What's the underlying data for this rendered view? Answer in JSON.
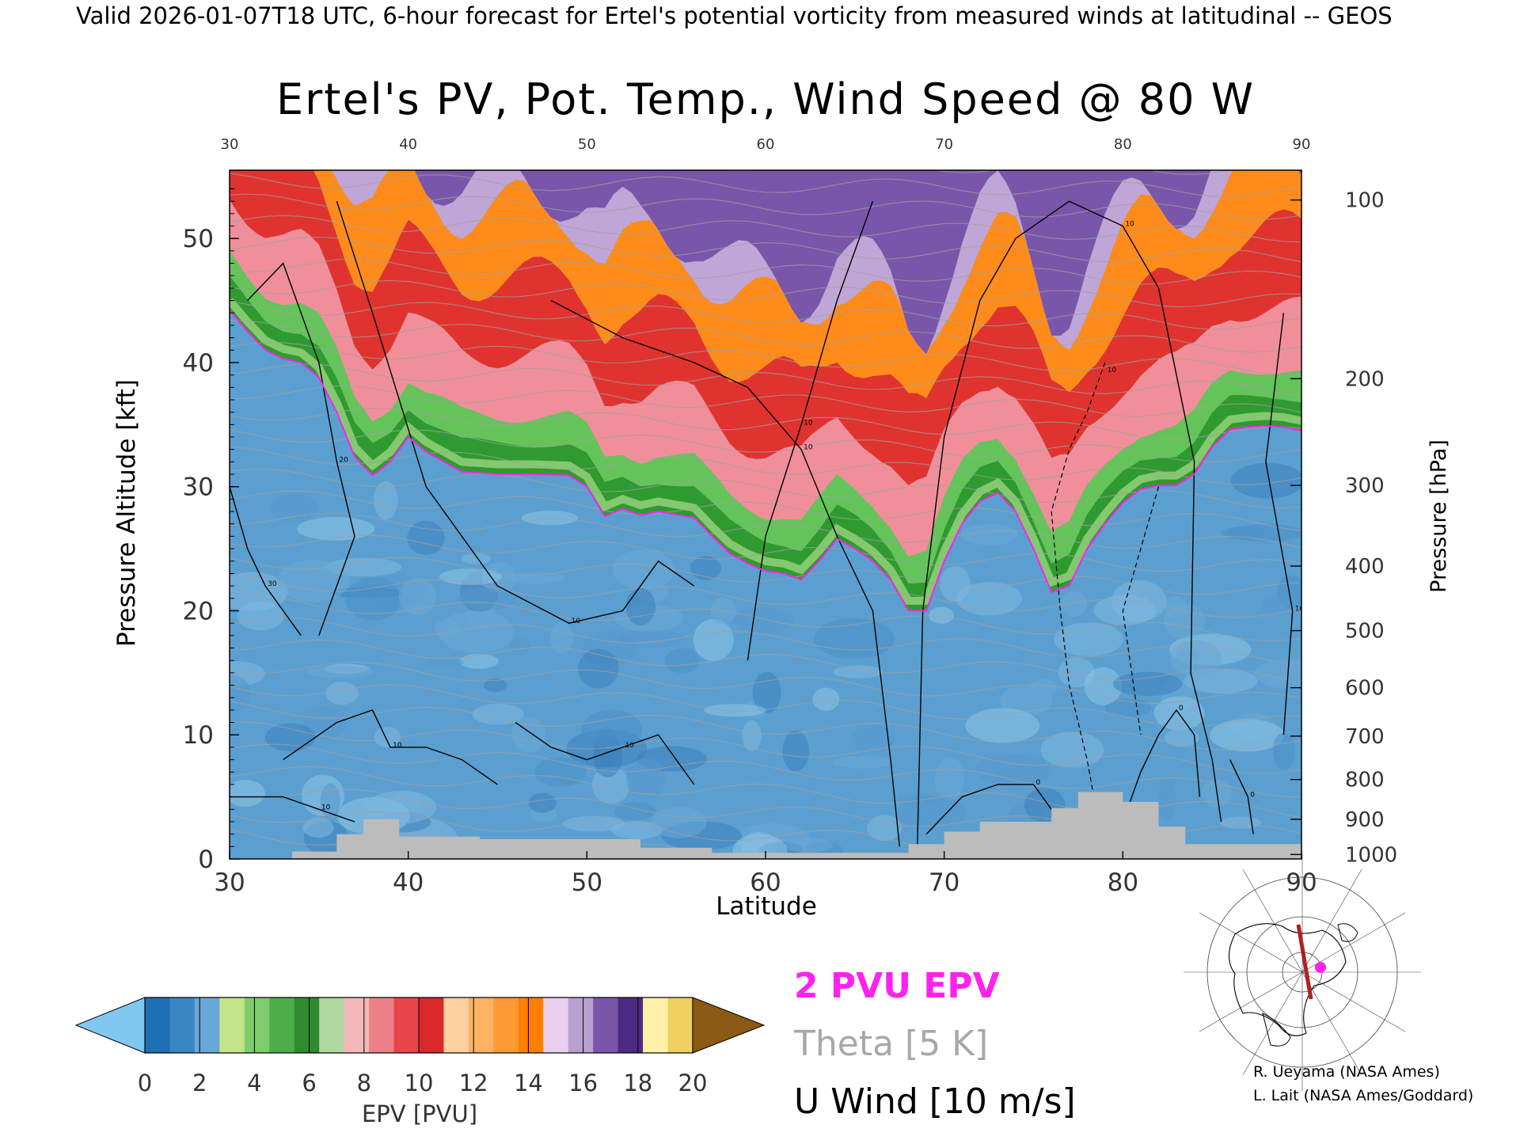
{
  "header": {
    "caption": "Valid 2026-01-07T18 UTC, 6-hour forecast for Ertel's potential vorticity from measured winds at latitudinal -- GEOS"
  },
  "chart_data": {
    "type": "heatmap",
    "title": "Ertel's PV, Pot. Temp., Wind Speed @ 80 W",
    "xlabel": "Latitude",
    "ylabel": "Pressure Altitude [kft]",
    "ylabel_right": "Pressure [hPa]",
    "xlim": [
      30,
      90
    ],
    "ylim": [
      0,
      55.5
    ],
    "x_ticks": [
      30,
      40,
      50,
      60,
      70,
      80,
      90
    ],
    "x_tick_labels": [
      "30",
      "40",
      "50",
      "60",
      "70",
      "80",
      "90"
    ],
    "top_tick_labels": [
      "30",
      "40",
      "50",
      "60",
      "70",
      "80",
      "90"
    ],
    "y_ticks": [
      0,
      10,
      20,
      30,
      40,
      50
    ],
    "y_tick_labels": [
      "0",
      "10",
      "20",
      "30",
      "40",
      "50"
    ],
    "right_ticks": [
      {
        "hPa": "100",
        "kft": 53.1
      },
      {
        "hPa": "200",
        "kft": 38.7
      },
      {
        "hPa": "300",
        "kft": 30.1
      },
      {
        "hPa": "400",
        "kft": 23.6
      },
      {
        "hPa": "500",
        "kft": 18.4
      },
      {
        "hPa": "600",
        "kft": 13.8
      },
      {
        "hPa": "700",
        "kft": 9.9
      },
      {
        "hPa": "800",
        "kft": 6.4
      },
      {
        "hPa": "900",
        "kft": 3.2
      },
      {
        "hPa": "1000",
        "kft": 0.36
      }
    ],
    "tropopause_2pvu": [
      [
        30,
        44.2
      ],
      [
        31,
        42.5
      ],
      [
        32,
        41
      ],
      [
        33,
        40.3
      ],
      [
        34,
        40
      ],
      [
        35,
        38.8
      ],
      [
        36,
        36
      ],
      [
        37,
        32.4
      ],
      [
        38,
        30.9
      ],
      [
        39,
        32
      ],
      [
        40,
        34
      ],
      [
        41,
        32.8
      ],
      [
        42,
        32
      ],
      [
        43,
        31.2
      ],
      [
        45,
        31
      ],
      [
        47,
        31
      ],
      [
        49,
        30.9
      ],
      [
        50,
        30
      ],
      [
        51,
        27.6
      ],
      [
        52,
        28.2
      ],
      [
        53,
        27.7
      ],
      [
        54,
        28
      ],
      [
        56,
        27.5
      ],
      [
        57,
        26
      ],
      [
        58,
        24.6
      ],
      [
        59,
        23.8
      ],
      [
        60,
        23.2
      ],
      [
        61,
        23
      ],
      [
        62,
        22.5
      ],
      [
        63,
        24
      ],
      [
        64,
        25.8
      ],
      [
        65,
        25
      ],
      [
        66,
        24
      ],
      [
        67,
        22.5
      ],
      [
        68,
        20
      ],
      [
        69,
        20
      ],
      [
        70,
        24
      ],
      [
        71,
        27
      ],
      [
        72,
        28.8
      ],
      [
        73,
        29.5
      ],
      [
        74,
        28
      ],
      [
        75,
        25
      ],
      [
        76,
        21.5
      ],
      [
        77,
        22
      ],
      [
        78,
        25
      ],
      [
        79,
        27
      ],
      [
        80,
        28.7
      ],
      [
        81,
        29.8
      ],
      [
        82,
        30.1
      ],
      [
        83,
        30.1
      ],
      [
        84,
        31
      ],
      [
        85,
        33.2
      ],
      [
        86,
        34.6
      ],
      [
        87,
        34.8
      ],
      [
        88,
        34.9
      ],
      [
        89,
        34.8
      ],
      [
        90,
        34.5
      ]
    ],
    "epv_layers_kft_thickness": [
      {
        "color": "#2f9a2f",
        "thickness": 2.5
      },
      {
        "color": "#64c45a",
        "thickness": 2.2
      },
      {
        "color": "#f08f9a",
        "thickness": 5.0
      },
      {
        "color": "#e0332f",
        "thickness": 6.0
      },
      {
        "color": "#ff8c1a",
        "thickness": 5.5
      },
      {
        "color": "#c0a6d6",
        "thickness": 2.0
      },
      {
        "color": "#7a56aa",
        "thickness": 3.0
      }
    ],
    "u_wind_contours": [
      {
        "label": "30",
        "points": [
          [
            30,
            30
          ],
          [
            31,
            25
          ],
          [
            32,
            22
          ],
          [
            33,
            20
          ],
          [
            34,
            18
          ]
        ]
      },
      {
        "label": "20",
        "points": [
          [
            31,
            45
          ],
          [
            33,
            48
          ],
          [
            35,
            40
          ],
          [
            36,
            32
          ],
          [
            37,
            26
          ],
          [
            36,
            22
          ],
          [
            35,
            18
          ]
        ]
      },
      {
        "label": "10",
        "points": [
          [
            36,
            53
          ],
          [
            38,
            44
          ],
          [
            41,
            30
          ],
          [
            45,
            22
          ],
          [
            49,
            19
          ],
          [
            52,
            20
          ],
          [
            54,
            24
          ],
          [
            56,
            22
          ]
        ]
      },
      {
        "label": "10",
        "points": [
          [
            48,
            45
          ],
          [
            52,
            42
          ],
          [
            56,
            40
          ],
          [
            59,
            38
          ],
          [
            62,
            33
          ],
          [
            64,
            26
          ],
          [
            66,
            20
          ],
          [
            67,
            8
          ],
          [
            67.5,
            1
          ]
        ]
      },
      {
        "label": "10",
        "points": [
          [
            68.5,
            1
          ],
          [
            68.8,
            20
          ],
          [
            70,
            34
          ],
          [
            72,
            45
          ],
          [
            74,
            50
          ],
          [
            77,
            53
          ],
          [
            80,
            51
          ],
          [
            82,
            46
          ],
          [
            84,
            32
          ],
          [
            83.8,
            15
          ],
          [
            85,
            8
          ],
          [
            85.5,
            3
          ]
        ]
      },
      {
        "label": "10",
        "points": [
          [
            66,
            53
          ],
          [
            64,
            45
          ],
          [
            62,
            35
          ],
          [
            60,
            26
          ],
          [
            59,
            16
          ]
        ]
      },
      {
        "label": "0",
        "points": [
          [
            86,
            8
          ],
          [
            87,
            5
          ],
          [
            87.3,
            2
          ]
        ]
      },
      {
        "label": "10",
        "points": [
          [
            89,
            44
          ],
          [
            88,
            32
          ],
          [
            89.5,
            20
          ],
          [
            89,
            10
          ]
        ]
      },
      {
        "label": "10",
        "points": [
          [
            33,
            8
          ],
          [
            36,
            11
          ],
          [
            38,
            12
          ],
          [
            39,
            9
          ],
          [
            41,
            9
          ],
          [
            43,
            8
          ],
          [
            45,
            6
          ]
        ]
      },
      {
        "label": "10",
        "points": [
          [
            30,
            5
          ],
          [
            33,
            5
          ],
          [
            35,
            4
          ],
          [
            37,
            3
          ]
        ]
      },
      {
        "label": "10",
        "points": [
          [
            46,
            11
          ],
          [
            48,
            9
          ],
          [
            50,
            8
          ],
          [
            52,
            9
          ],
          [
            54,
            10
          ],
          [
            55,
            8
          ],
          [
            56,
            6
          ]
        ]
      },
      {
        "label": "0",
        "points": [
          [
            69,
            2
          ],
          [
            71,
            5
          ],
          [
            73,
            6
          ],
          [
            75,
            6
          ],
          [
            76,
            4
          ],
          [
            76.5,
            2
          ]
        ]
      },
      {
        "label": "0",
        "points": [
          [
            80,
            3
          ],
          [
            81,
            7
          ],
          [
            82,
            10
          ],
          [
            83,
            12
          ],
          [
            84,
            10
          ],
          [
            84.3,
            5
          ]
        ]
      }
    ],
    "u_wind_dashed": [
      {
        "label": "10",
        "points": [
          [
            79,
            40
          ],
          [
            78,
            36
          ],
          [
            77,
            33
          ],
          [
            76,
            28
          ],
          [
            76.5,
            20
          ],
          [
            77,
            14
          ],
          [
            78,
            8
          ],
          [
            78.5,
            4
          ]
        ]
      },
      {
        "label": "",
        "points": [
          [
            82,
            30
          ],
          [
            81,
            25
          ],
          [
            80,
            20
          ],
          [
            80.5,
            15
          ],
          [
            81,
            10
          ]
        ]
      }
    ],
    "colorbar": {
      "label": "EPV [PVU]",
      "ticks": [
        "0",
        "2",
        "4",
        "6",
        "8",
        "10",
        "12",
        "14",
        "16",
        "18",
        "20"
      ],
      "colors": [
        "#1f6fb4",
        "#3a86c4",
        "#68a8d6",
        "#c4e48a",
        "#7fcc6c",
        "#4caf4c",
        "#2e8b2e",
        "#b0d8a0",
        "#f5b8b8",
        "#ee8088",
        "#e8454a",
        "#d82828",
        "#ffd0a0",
        "#ffb266",
        "#ff9933",
        "#ff7f00",
        "#e8d0ee",
        "#b8a0d0",
        "#7a56aa",
        "#4b2c82",
        "#fff2a8",
        "#f0d060"
      ],
      "under_color": "#80c8f0",
      "over_color": "#8b5a14"
    }
  },
  "legend": {
    "epv_label": "2 PVU EPV",
    "theta_label": "Theta [5 K]",
    "wind_label": "U Wind [10 m/s]",
    "epv_color": "#ff22ee",
    "theta_color": "#a8a8a8",
    "wind_color": "#000000"
  },
  "credits": {
    "line1": "R. Ueyama (NASA Ames)",
    "line2": "L. Lait (NASA Ames/Goddard)"
  },
  "locator_map": {
    "transect_color": "#b02020",
    "marker_color": "#ff22ee"
  }
}
